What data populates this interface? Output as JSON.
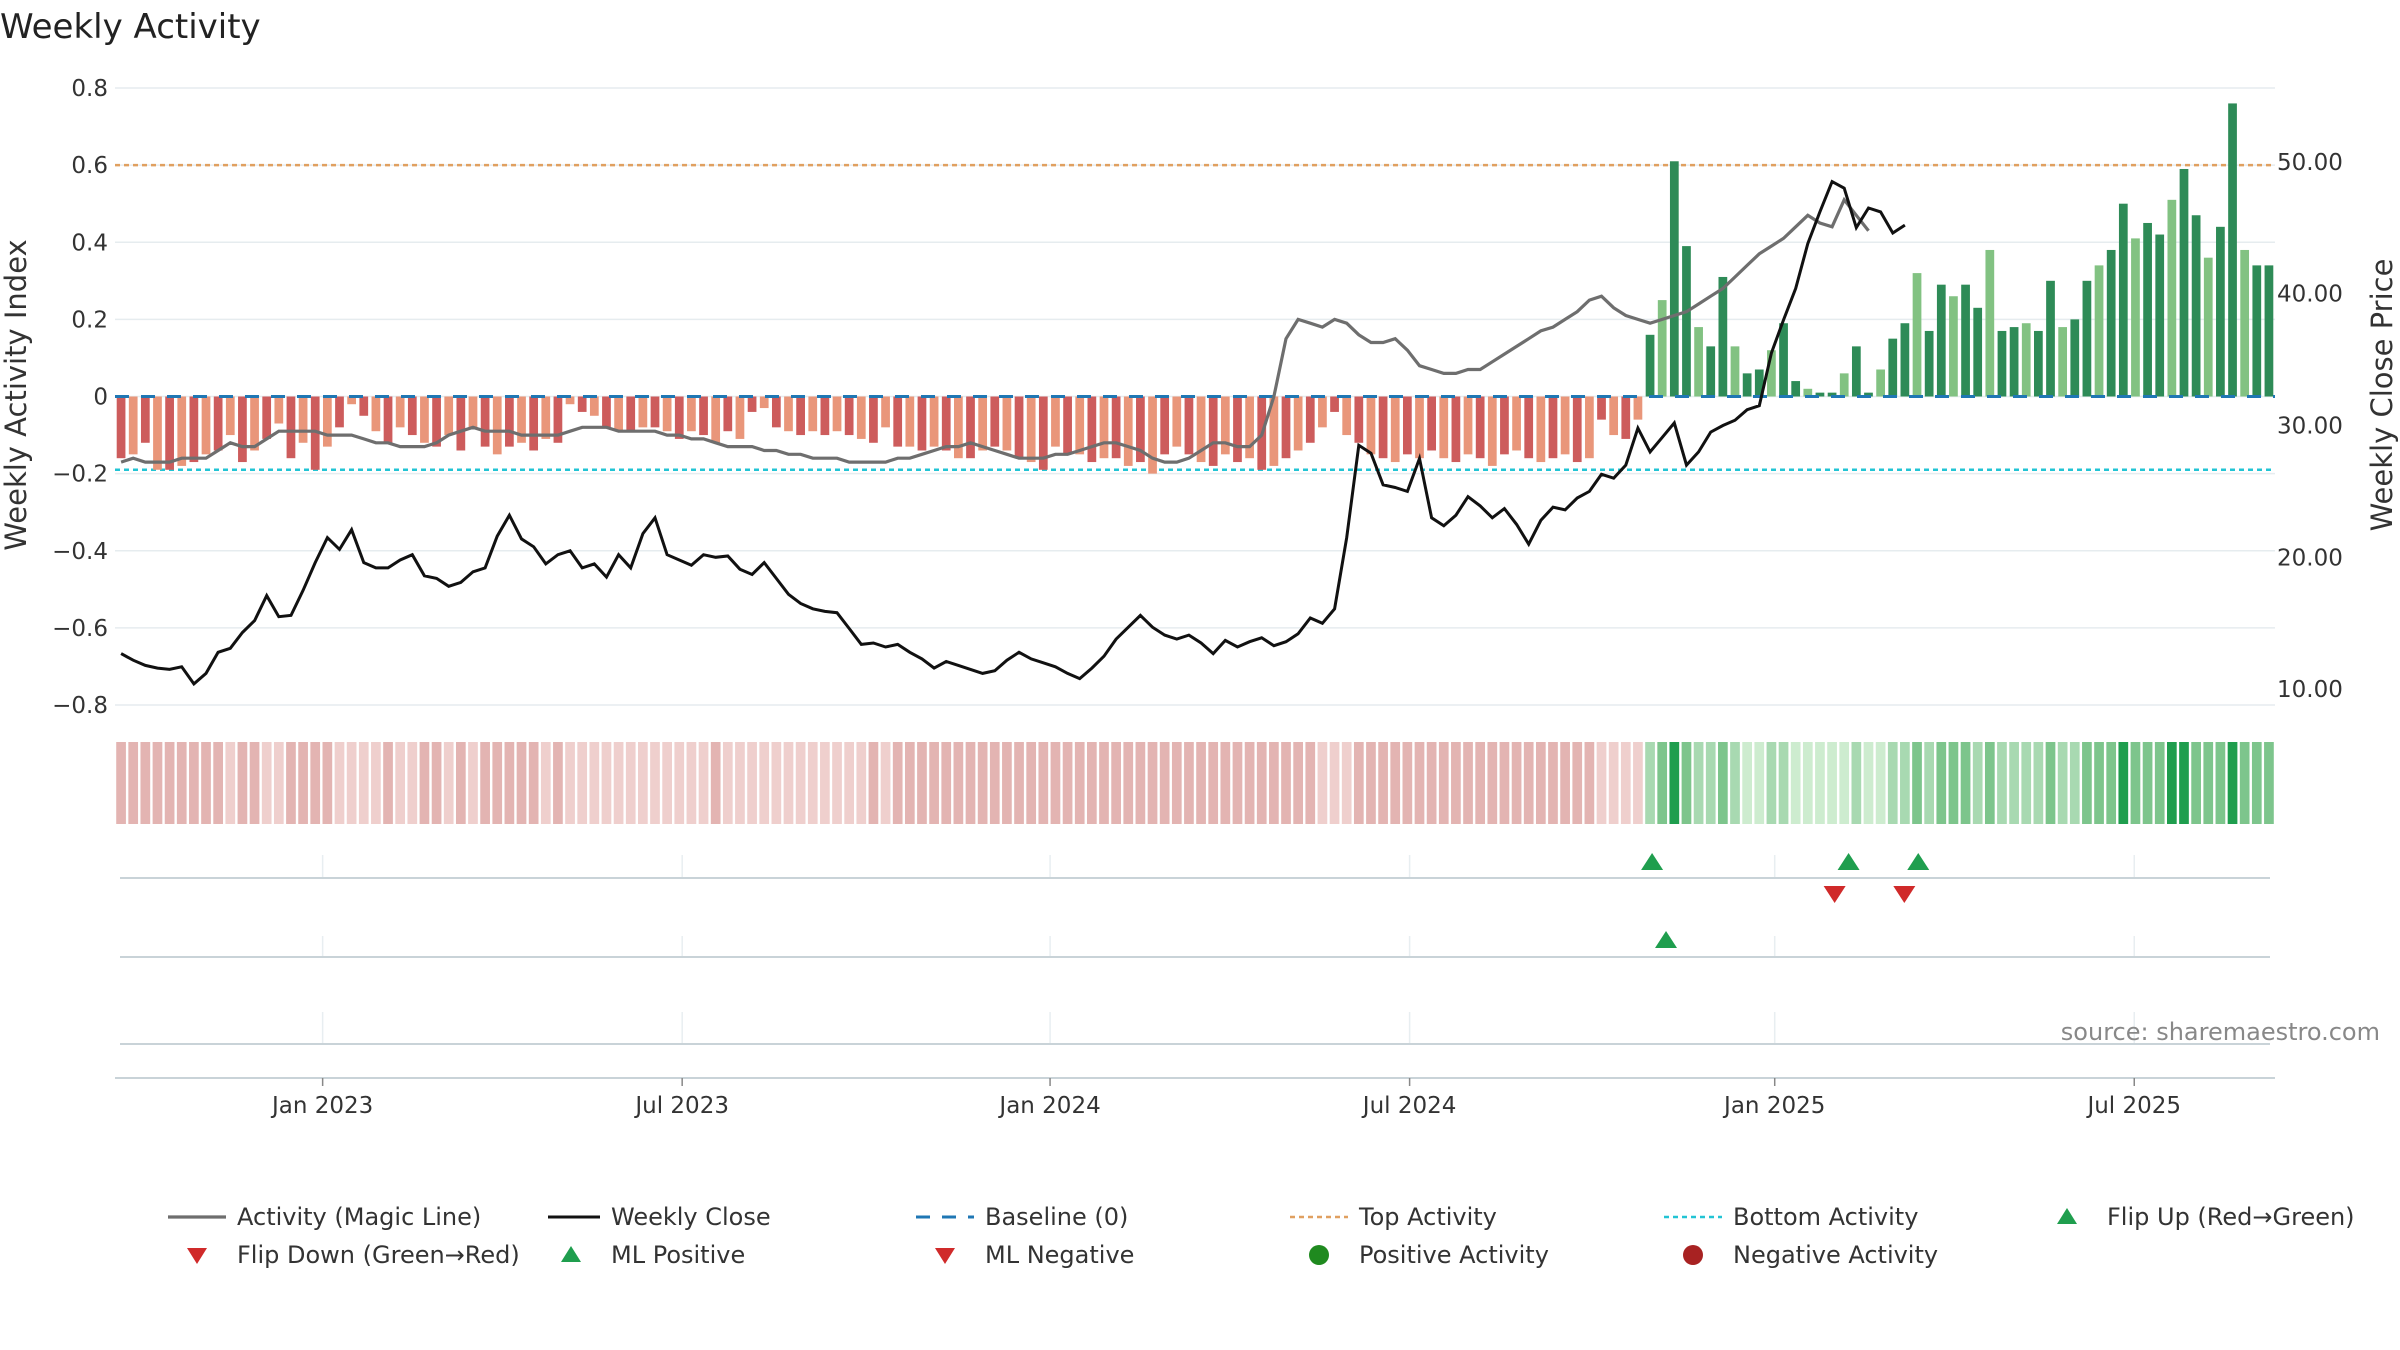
{
  "chart_data": {
    "type": "bar",
    "title": "Weekly Activity",
    "ylabel_left": "Weekly Activity Index",
    "ylabel_right": "Weekly Close Price",
    "source": "source: sharemaestro.com",
    "ylim_left": [
      -0.8,
      0.8
    ],
    "yticks_left": [
      "0.8",
      "0.6",
      "0.4",
      "0.2",
      "0",
      "−0.2",
      "−0.4",
      "−0.6",
      "−0.8"
    ],
    "ylim_right": [
      8.8,
      55.6
    ],
    "yticks_right": [
      "50.00",
      "40.00",
      "30.00",
      "20.00",
      "10.00"
    ],
    "x_range_weeks": [
      0,
      155
    ],
    "xticks": [
      {
        "week": 14.9,
        "label": "Jan 2023"
      },
      {
        "week": 40.7,
        "label": "Jul 2023"
      },
      {
        "week": 67.1,
        "label": "Jan 2024"
      },
      {
        "week": 92.9,
        "label": "Jul 2024"
      },
      {
        "week": 119.1,
        "label": "Jan 2025"
      },
      {
        "week": 144.9,
        "label": "Jul 2025"
      }
    ],
    "top_activity": 0.6,
    "bottom_activity": -0.19,
    "baseline": 0,
    "series": [
      {
        "name": "Weekly Activity (bars)",
        "type": "bar",
        "values": [
          -0.16,
          -0.15,
          -0.12,
          -0.19,
          -0.19,
          -0.18,
          -0.17,
          -0.15,
          -0.14,
          -0.1,
          -0.17,
          -0.14,
          -0.11,
          -0.07,
          -0.16,
          -0.12,
          -0.19,
          -0.13,
          -0.08,
          -0.02,
          -0.05,
          -0.09,
          -0.12,
          -0.08,
          -0.1,
          -0.12,
          -0.13,
          -0.1,
          -0.14,
          -0.08,
          -0.13,
          -0.15,
          -0.13,
          -0.12,
          -0.14,
          -0.11,
          -0.12,
          -0.02,
          -0.04,
          -0.05,
          -0.08,
          -0.09,
          -0.09,
          -0.08,
          -0.08,
          -0.09,
          -0.11,
          -0.09,
          -0.1,
          -0.12,
          -0.09,
          -0.11,
          -0.04,
          -0.03,
          -0.08,
          -0.09,
          -0.1,
          -0.09,
          -0.1,
          -0.09,
          -0.1,
          -0.11,
          -0.12,
          -0.08,
          -0.13,
          -0.13,
          -0.14,
          -0.13,
          -0.14,
          -0.16,
          -0.16,
          -0.14,
          -0.13,
          -0.14,
          -0.16,
          -0.17,
          -0.19,
          -0.13,
          -0.15,
          -0.15,
          -0.17,
          -0.16,
          -0.16,
          -0.18,
          -0.17,
          -0.2,
          -0.15,
          -0.13,
          -0.15,
          -0.17,
          -0.18,
          -0.15,
          -0.17,
          -0.16,
          -0.19,
          -0.18,
          -0.16,
          -0.14,
          -0.12,
          -0.08,
          -0.04,
          -0.1,
          -0.12,
          -0.15,
          -0.16,
          -0.17,
          -0.15,
          -0.16,
          -0.14,
          -0.16,
          -0.17,
          -0.15,
          -0.16,
          -0.18,
          -0.15,
          -0.14,
          -0.16,
          -0.17,
          -0.16,
          -0.15,
          -0.17,
          -0.16,
          -0.06,
          -0.1,
          -0.11,
          -0.06,
          0.16,
          0.25,
          0.61,
          0.39,
          0.18,
          0.13,
          0.31,
          0.13,
          0.06,
          0.07,
          0.12,
          0.19,
          0.04,
          0.02,
          0.01,
          0.01,
          0.06,
          0.13,
          0.01,
          0.07,
          0.15,
          0.19,
          0.32,
          0.17,
          0.29,
          0.26,
          0.29,
          0.23,
          0.38,
          0.17,
          0.18,
          0.19,
          0.17,
          0.3,
          0.18,
          0.2,
          0.3,
          0.34,
          0.38,
          0.5,
          0.41,
          0.45,
          0.42,
          0.51,
          0.59,
          0.47,
          0.36,
          0.44,
          0.76,
          0.38,
          0.34,
          0.34
        ]
      },
      {
        "name": "Activity (Magic Line)",
        "type": "line",
        "values": [
          -0.17,
          -0.16,
          -0.17,
          -0.17,
          -0.17,
          -0.16,
          -0.16,
          -0.16,
          -0.14,
          -0.12,
          -0.13,
          -0.13,
          -0.11,
          -0.09,
          -0.09,
          -0.09,
          -0.09,
          -0.1,
          -0.1,
          -0.1,
          -0.11,
          -0.12,
          -0.12,
          -0.13,
          -0.13,
          -0.13,
          -0.12,
          -0.1,
          -0.09,
          -0.08,
          -0.09,
          -0.09,
          -0.09,
          -0.1,
          -0.1,
          -0.1,
          -0.1,
          -0.09,
          -0.08,
          -0.08,
          -0.08,
          -0.09,
          -0.09,
          -0.09,
          -0.09,
          -0.1,
          -0.1,
          -0.11,
          -0.11,
          -0.12,
          -0.13,
          -0.13,
          -0.13,
          -0.14,
          -0.14,
          -0.15,
          -0.15,
          -0.16,
          -0.16,
          -0.16,
          -0.17,
          -0.17,
          -0.17,
          -0.17,
          -0.16,
          -0.16,
          -0.15,
          -0.14,
          -0.13,
          -0.13,
          -0.12,
          -0.13,
          -0.14,
          -0.15,
          -0.16,
          -0.16,
          -0.16,
          -0.15,
          -0.15,
          -0.14,
          -0.13,
          -0.12,
          -0.12,
          -0.13,
          -0.14,
          -0.16,
          -0.17,
          -0.17,
          -0.16,
          -0.14,
          -0.12,
          -0.12,
          -0.13,
          -0.13,
          -0.1,
          0.0,
          0.15,
          0.2,
          0.19,
          0.18,
          0.2,
          0.19,
          0.16,
          0.14,
          0.14,
          0.15,
          0.12,
          0.08,
          0.07,
          0.06,
          0.06,
          0.07,
          0.07,
          0.09,
          0.11,
          0.13,
          0.15,
          0.17,
          0.18,
          0.2,
          0.22,
          0.25,
          0.26,
          0.23,
          0.21,
          0.2,
          0.19,
          0.2,
          0.21,
          0.22,
          0.24,
          0.26,
          0.28,
          0.31,
          0.34,
          0.37,
          0.39,
          0.41,
          0.44,
          0.47,
          0.45,
          0.44,
          0.51,
          0.47,
          0.43
        ]
      },
      {
        "name": "Weekly Close",
        "type": "line",
        "values": [
          12.7,
          12.2,
          11.8,
          11.6,
          11.5,
          11.7,
          10.4,
          11.2,
          12.8,
          13.1,
          14.3,
          15.2,
          17.1,
          15.5,
          15.6,
          17.5,
          19.6,
          21.5,
          20.6,
          22.1,
          19.6,
          19.2,
          19.2,
          19.8,
          20.2,
          18.6,
          18.4,
          17.8,
          18.1,
          18.9,
          19.2,
          21.6,
          23.2,
          21.4,
          20.8,
          19.5,
          20.2,
          20.5,
          19.2,
          19.5,
          18.5,
          20.2,
          19.2,
          21.8,
          23.0,
          20.2,
          19.8,
          19.4,
          20.2,
          20.0,
          20.1,
          19.1,
          18.7,
          19.6,
          18.4,
          17.2,
          16.5,
          16.1,
          15.9,
          15.8,
          14.6,
          13.4,
          13.5,
          13.2,
          13.4,
          12.8,
          12.3,
          11.6,
          12.1,
          11.8,
          11.5,
          11.2,
          11.4,
          12.2,
          12.8,
          12.3,
          12.0,
          11.7,
          11.2,
          10.8,
          11.6,
          12.5,
          13.8,
          14.7,
          15.6,
          14.7,
          14.1,
          13.8,
          14.1,
          13.5,
          12.7,
          13.7,
          13.2,
          13.6,
          13.9,
          13.3,
          13.6,
          14.2,
          15.4,
          15.0,
          16.1,
          21.5,
          28.5,
          27.9,
          25.5,
          25.3,
          25.0,
          27.5,
          23.0,
          22.4,
          23.2,
          24.6,
          23.9,
          23.0,
          23.7,
          22.5,
          21.0,
          22.8,
          23.8,
          23.6,
          24.5,
          25.0,
          26.3,
          26.0,
          27.0,
          29.8,
          28.0,
          29.1,
          30.2,
          27.0,
          28.0,
          29.5,
          30.0,
          30.4,
          31.2,
          31.5,
          35.5,
          38.0,
          40.4,
          43.8,
          46.2,
          48.5,
          48.0,
          45.0,
          46.5,
          46.2,
          44.6,
          45.2
        ]
      }
    ],
    "strip_colors": {
      "negative": "#dd9e9c",
      "neutral_neg": "#e9c2c0",
      "positive": "#6cbf7b",
      "strong_positive": "#2f9e55"
    },
    "flip_markers": {
      "row1_flip_up": [
        110.3,
        124.4,
        129.4
      ],
      "row1_flip_down": [
        123.4,
        128.4
      ],
      "row2_ml_positive": [
        111.3
      ]
    }
  },
  "legend": {
    "items": [
      {
        "label": "Activity (Magic Line)"
      },
      {
        "label": "Weekly Close"
      },
      {
        "label": "Baseline (0)"
      },
      {
        "label": "Top Activity"
      },
      {
        "label": "Bottom Activity"
      },
      {
        "label": "Flip Up (Red→Green)"
      },
      {
        "label": "Flip Down (Green→Red)"
      },
      {
        "label": "ML Positive"
      },
      {
        "label": "ML Negative"
      },
      {
        "label": "Positive Activity"
      },
      {
        "label": "Negative Activity"
      }
    ]
  },
  "colors": {
    "bar_pos_strong": "#2e8b57",
    "bar_pos_light": "#82c282",
    "bar_neg_strong": "#cd5c5c",
    "bar_neg_light": "#e9967a",
    "magic_line": "#6e6e6e",
    "close_line": "#111111",
    "baseline": "#1f77b4",
    "top_activity": "#e0a060",
    "bottom_activity": "#22c4d4",
    "flip_up": "#1f9e4e",
    "flip_down": "#d02a2a",
    "positive_dot": "#1f8a1f",
    "negative_dot": "#a82222"
  }
}
